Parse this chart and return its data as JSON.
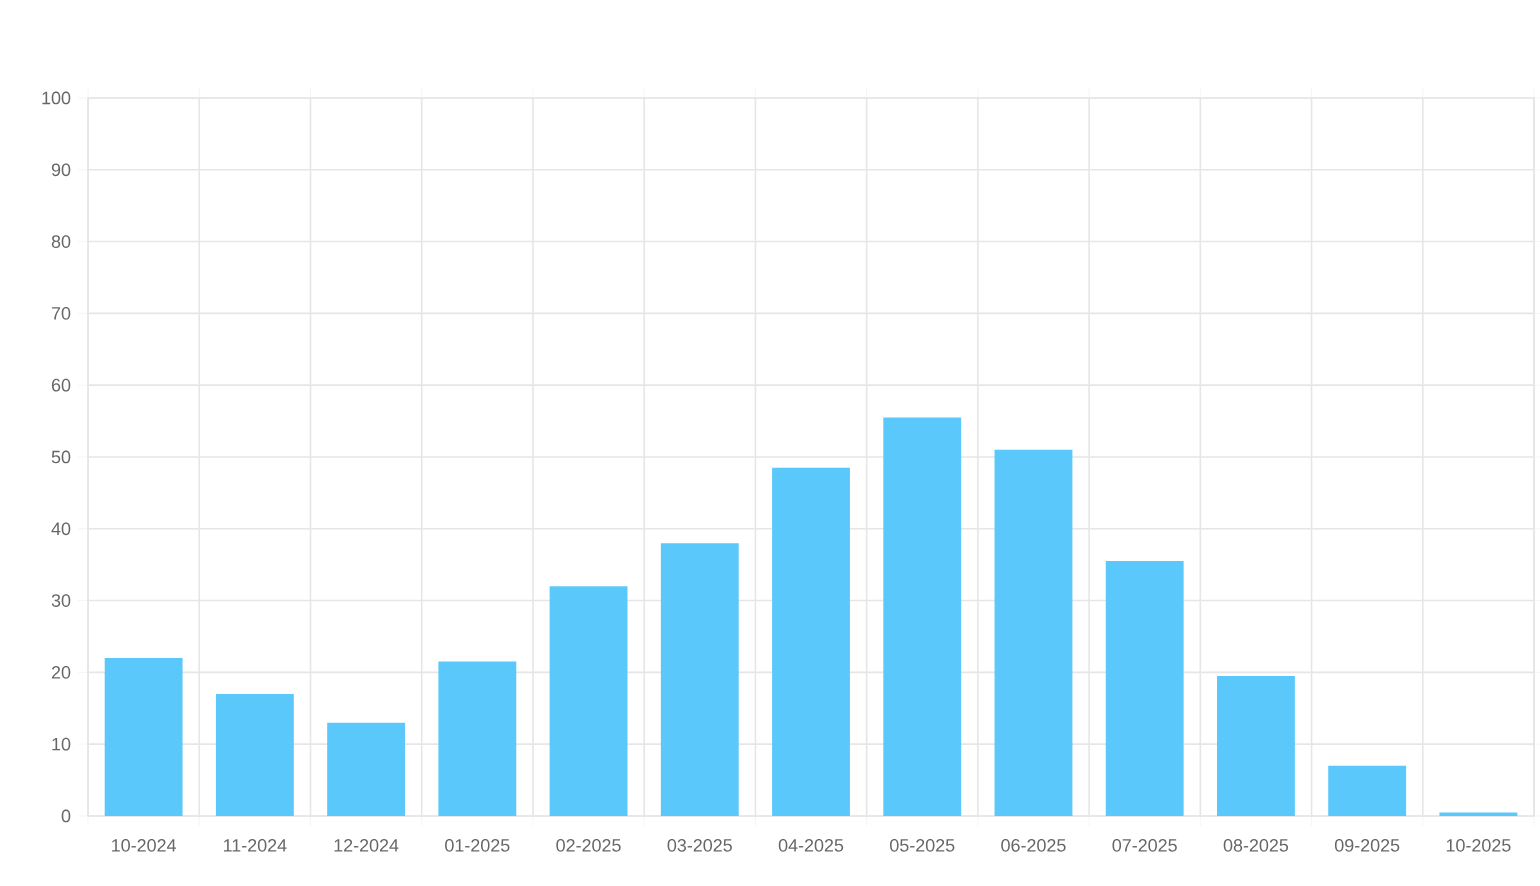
{
  "chart_data": {
    "type": "bar",
    "categories": [
      "10-2024",
      "11-2024",
      "12-2024",
      "01-2025",
      "02-2025",
      "03-2025",
      "04-2025",
      "05-2025",
      "06-2025",
      "07-2025",
      "08-2025",
      "09-2025",
      "10-2025"
    ],
    "values": [
      22,
      17,
      13,
      21.5,
      32,
      38,
      48.5,
      55.5,
      51,
      35.5,
      19.5,
      7,
      0.5
    ],
    "color": "#5bc8fb",
    "ylim": [
      0,
      100
    ],
    "yticks": [
      0,
      10,
      20,
      30,
      40,
      50,
      60,
      70,
      80,
      90,
      100
    ],
    "grid": true
  }
}
